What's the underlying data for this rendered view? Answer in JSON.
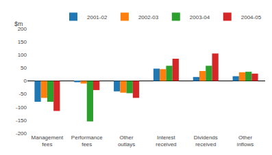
{
  "chart_data": {
    "type": "bar",
    "y_label": "$m",
    "categories": [
      "Management\nfees",
      "Performance\nfees",
      "Other\noutlays",
      "Interest\nreceived",
      "Dividends\nreceived",
      "Other\ninflows"
    ],
    "series": [
      {
        "name": "2001-02",
        "values": [
          -80,
          -5,
          -40,
          47,
          15,
          18
        ]
      },
      {
        "name": "2002-03",
        "values": [
          -65,
          -10,
          -45,
          45,
          38,
          33
        ]
      },
      {
        "name": "2003-04",
        "values": [
          -80,
          -155,
          -47,
          58,
          58,
          35
        ]
      },
      {
        "name": "2004-05",
        "values": [
          -115,
          -35,
          -65,
          85,
          105,
          28
        ]
      }
    ],
    "ylim": [
      -200,
      200
    ],
    "yticks": [
      -200,
      -150,
      -100,
      -50,
      0,
      50,
      100,
      150,
      200
    ],
    "grid": false,
    "legend": "upper right"
  }
}
